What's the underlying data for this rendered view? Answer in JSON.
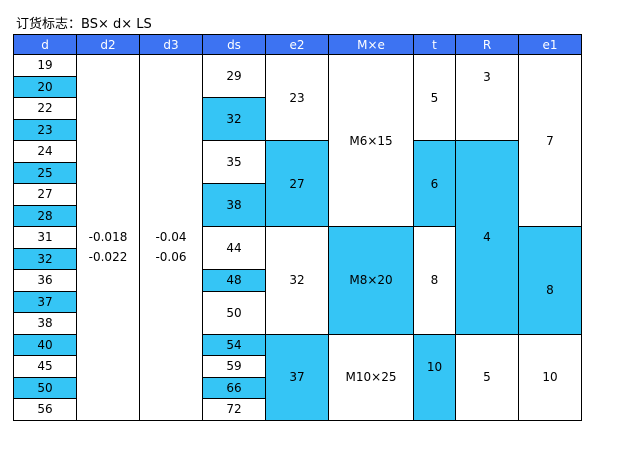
{
  "caption": "订货标志：BS× d× LS",
  "colors": {
    "header": "#3d73f2",
    "highlight": "#35c5f5",
    "plain": "#ffffff"
  },
  "headers": [
    "d",
    "d2",
    "d3",
    "ds",
    "e2",
    "M×e",
    "t",
    "R",
    "e1"
  ],
  "d": [
    "19",
    "20",
    "22",
    "23",
    "24",
    "25",
    "27",
    "28",
    "31",
    "32",
    "36",
    "37",
    "38",
    "40",
    "45",
    "50",
    "56"
  ],
  "d2": {
    "upper": "-0.018",
    "lower": "-0.022"
  },
  "d3": {
    "upper": "-0.04",
    "lower": "-0.06"
  },
  "ds": [
    "29",
    "32",
    "35",
    "38",
    "44",
    "48",
    "50",
    "54",
    "59",
    "66",
    "72"
  ],
  "e2": [
    "23",
    "27",
    "32",
    "37"
  ],
  "Mxe": [
    "M6×15",
    "M8×20",
    "M10×25"
  ],
  "t": [
    "5",
    "6",
    "8",
    "10"
  ],
  "R": [
    "3",
    "4",
    "5"
  ],
  "e1": [
    "7",
    "8",
    "10"
  ]
}
